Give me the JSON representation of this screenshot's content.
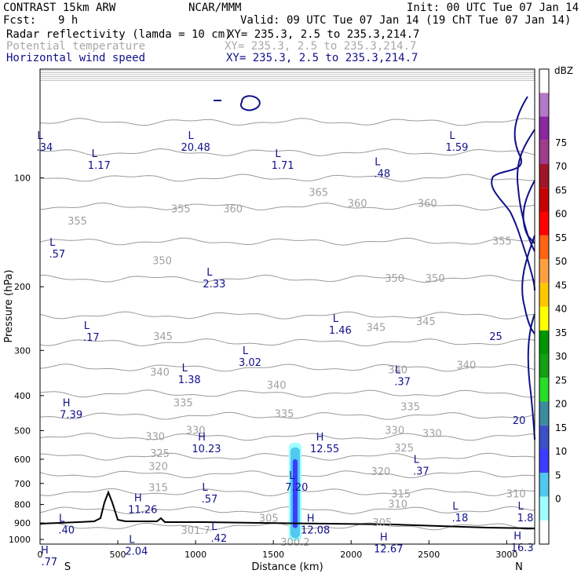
{
  "header": {
    "model": "CONTRAST 15km ARW",
    "center": "NCAR/MMM",
    "init": "Init: 00 UTC Tue 07 Jan 14",
    "fcst_label": "Fcst:",
    "fcst_value": "9 h",
    "valid": "Valid: 09 UTC Tue 07 Jan 14 (19 ChT Tue 07 Jan 14)"
  },
  "fields": [
    {
      "name": "Radar reflectivity (lamda = 10 cm)",
      "xy": "XY= 235.3,  2.5 to 235.3,214.7",
      "color": "#000000"
    },
    {
      "name": "Potential temperature",
      "xy": "XY= 235.3,  2.5 to 235.3,214.7",
      "color": "#a8a8a8"
    },
    {
      "name": "Horizontal wind speed",
      "xy": "XY= 235.3,  2.5 to 235.3,214.7",
      "color": "#10108a"
    }
  ],
  "chart_data": {
    "type": "cross-section contour",
    "ylabel": "Pressure (hPa)",
    "xlabel": "Distance (km)",
    "x_ticks": [
      0,
      500,
      1000,
      1500,
      2000,
      2500,
      3000
    ],
    "y_ticks": [
      100,
      200,
      300,
      400,
      500,
      600,
      700,
      800,
      900,
      1000
    ],
    "xlim": [
      0,
      3180
    ],
    "ylim": [
      50,
      1030
    ],
    "y_scale": "log",
    "x_end_labels": {
      "left": "S",
      "right": "N"
    },
    "theta_labels": [
      {
        "text": "355",
        "x": 240,
        "p": 132
      },
      {
        "text": "355",
        "x": 905,
        "p": 122
      },
      {
        "text": "360",
        "x": 1240,
        "p": 122
      },
      {
        "text": "365",
        "x": 1790,
        "p": 110
      },
      {
        "text": "360",
        "x": 2040,
        "p": 118
      },
      {
        "text": "360",
        "x": 2490,
        "p": 118
      },
      {
        "text": "355",
        "x": 2970,
        "p": 150
      },
      {
        "text": "350",
        "x": 785,
        "p": 170
      },
      {
        "text": "350",
        "x": 2280,
        "p": 190
      },
      {
        "text": "350",
        "x": 2540,
        "p": 190
      },
      {
        "text": "345",
        "x": 790,
        "p": 275
      },
      {
        "text": "345",
        "x": 2160,
        "p": 260
      },
      {
        "text": "345",
        "x": 2480,
        "p": 250
      },
      {
        "text": "340",
        "x": 770,
        "p": 345
      },
      {
        "text": "340",
        "x": 1520,
        "p": 375
      },
      {
        "text": "340",
        "x": 2300,
        "p": 340
      },
      {
        "text": "340",
        "x": 2740,
        "p": 330
      },
      {
        "text": "335",
        "x": 920,
        "p": 420
      },
      {
        "text": "335",
        "x": 1570,
        "p": 450
      },
      {
        "text": "335",
        "x": 2380,
        "p": 430
      },
      {
        "text": "330",
        "x": 740,
        "p": 520
      },
      {
        "text": "330",
        "x": 1000,
        "p": 500
      },
      {
        "text": "330",
        "x": 2280,
        "p": 500
      },
      {
        "text": "330",
        "x": 2520,
        "p": 510
      },
      {
        "text": "325",
        "x": 770,
        "p": 580
      },
      {
        "text": "325",
        "x": 2340,
        "p": 560
      },
      {
        "text": "320",
        "x": 760,
        "p": 630
      },
      {
        "text": "320",
        "x": 2190,
        "p": 650
      },
      {
        "text": "315",
        "x": 760,
        "p": 720
      },
      {
        "text": "315",
        "x": 2320,
        "p": 750
      },
      {
        "text": "310",
        "x": 3060,
        "p": 750
      },
      {
        "text": "310",
        "x": 2300,
        "p": 800
      },
      {
        "text": "305",
        "x": 1470,
        "p": 875
      },
      {
        "text": "305",
        "x": 2200,
        "p": 900
      },
      {
        "text": "301.7",
        "x": 1000,
        "p": 945
      },
      {
        "text": "300.2",
        "x": 1640,
        "p": 1020
      }
    ],
    "wind_labels": [
      {
        "text": "25",
        "x": 2930,
        "p": 275
      },
      {
        "text": "20",
        "x": 3080,
        "p": 470
      }
    ],
    "extrema": [
      {
        "type": "L",
        "value": ".34",
        "x": 30,
        "p": 82
      },
      {
        "type": "L",
        "value": "1.17",
        "x": 380,
        "p": 92
      },
      {
        "type": "L",
        "value": "20.48",
        "x": 1000,
        "p": 82
      },
      {
        "type": "L",
        "value": "1.71",
        "x": 1560,
        "p": 92
      },
      {
        "type": "L",
        "value": ".48",
        "x": 2200,
        "p": 97
      },
      {
        "type": "L",
        "value": "1.59",
        "x": 2680,
        "p": 82
      },
      {
        "type": "L",
        "value": ".57",
        "x": 110,
        "p": 162
      },
      {
        "type": "L",
        "value": "2.33",
        "x": 1120,
        "p": 196
      },
      {
        "type": "L",
        "value": ".17",
        "x": 330,
        "p": 275
      },
      {
        "type": "L",
        "value": "1.46",
        "x": 1930,
        "p": 263
      },
      {
        "type": "L",
        "value": "3.02",
        "x": 1350,
        "p": 323
      },
      {
        "type": "L",
        "value": "1.38",
        "x": 960,
        "p": 360
      },
      {
        "type": "L",
        "value": ".37",
        "x": 2330,
        "p": 365
      },
      {
        "type": "H",
        "value": "7.39",
        "x": 200,
        "p": 450
      },
      {
        "type": "H",
        "value": "10.23",
        "x": 1070,
        "p": 560
      },
      {
        "type": "H",
        "value": "12.55",
        "x": 1830,
        "p": 560
      },
      {
        "type": "L",
        "value": ".37",
        "x": 2450,
        "p": 645
      },
      {
        "type": "L",
        "value": "7.20",
        "x": 1650,
        "p": 715
      },
      {
        "type": "L",
        "value": ".57",
        "x": 1090,
        "p": 770
      },
      {
        "type": "H",
        "value": "11.26",
        "x": 660,
        "p": 825
      },
      {
        "type": "L",
        "value": ".18",
        "x": 2700,
        "p": 870
      },
      {
        "type": "L",
        "value": "1.8",
        "x": 3120,
        "p": 870
      },
      {
        "type": "L",
        "value": ".40",
        "x": 170,
        "p": 940
      },
      {
        "type": "H",
        "value": "12.08",
        "x": 1770,
        "p": 940
      },
      {
        "type": "L",
        "value": ".42",
        "x": 1150,
        "p": 990
      },
      {
        "type": "L",
        "value": "2.04",
        "x": 620,
        "p": 1075
      },
      {
        "type": "H",
        "value": "12.67",
        "x": 2240,
        "p": 1060
      },
      {
        "type": "H",
        "value": "16.3",
        "x": 3100,
        "p": 1050
      },
      {
        "type": "H",
        "value": ".77",
        "x": 60,
        "p": 1150
      }
    ],
    "colorbar": {
      "unit": "dBZ",
      "levels": [
        0,
        5,
        10,
        15,
        20,
        25,
        30,
        35,
        40,
        45,
        50,
        55,
        60,
        65,
        70,
        75
      ],
      "colors": [
        "#ffffff",
        "#a0ffff",
        "#50c8f0",
        "#3c3cff",
        "#3c50c8",
        "#3c8ca0",
        "#28dc28",
        "#14a014",
        "#009600",
        "#ffff00",
        "#ffc800",
        "#ffa040",
        "#ff6414",
        "#ff0000",
        "#c80000",
        "#a01428",
        "#a03c8c",
        "#8c28a0",
        "#b478c8",
        "#ffffff"
      ]
    },
    "reflectivity_column": {
      "x": 1640,
      "p_top": 540,
      "p_bottom": 1010
    }
  }
}
